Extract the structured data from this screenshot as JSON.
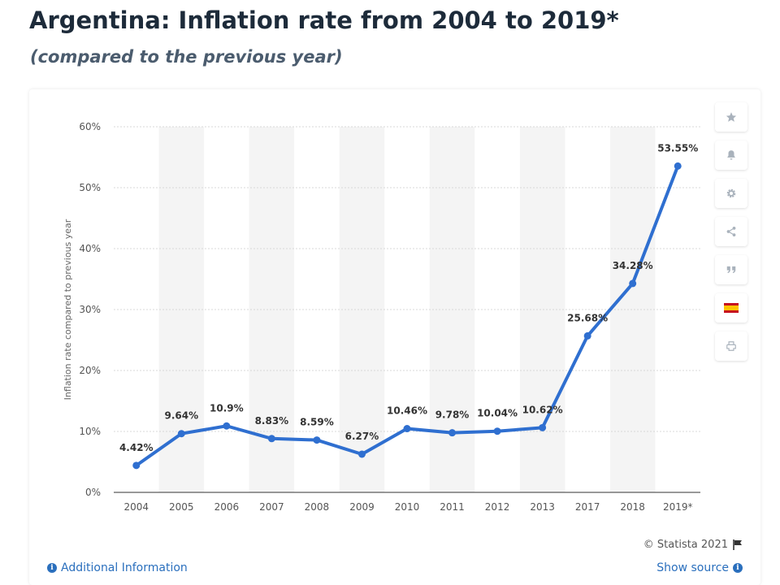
{
  "header": {
    "title": "Argentina: Inflation rate from 2004 to 2019*",
    "subtitle": "(compared to the previous year)"
  },
  "toolbar": {
    "icons": [
      "star-icon",
      "bell-icon",
      "gear-icon",
      "share-icon",
      "quote-icon",
      "spain-flag-icon",
      "print-icon"
    ]
  },
  "footer": {
    "credits": "© Statista 2021",
    "additional_info": "Additional Information",
    "show_source": "Show source"
  },
  "colors": {
    "line": "#2f6fd0",
    "link": "#2a6fbd",
    "band": "#f4f4f4",
    "grid": "#d8d8d8"
  },
  "chart_data": {
    "type": "line",
    "title": "",
    "xlabel": "",
    "ylabel": "Inflation rate compared to previous year",
    "categories": [
      "2004",
      "2005",
      "2006",
      "2007",
      "2008",
      "2009",
      "2010",
      "2011",
      "2012",
      "2013",
      "2017",
      "2018",
      "2019*"
    ],
    "series": [
      {
        "values": [
          4.42,
          9.64,
          10.9,
          8.83,
          8.59,
          6.27,
          10.46,
          9.78,
          10.04,
          10.62,
          25.68,
          34.28,
          53.55
        ],
        "labels": [
          "4.42%",
          "9.64%",
          "10.9%",
          "8.83%",
          "8.59%",
          "6.27%",
          "10.46%",
          "9.78%",
          "10.04%",
          "10.62%",
          "25.68%",
          "34.28%",
          "53.55%"
        ]
      }
    ],
    "ylim": [
      0,
      60
    ],
    "yticks": [
      0,
      10,
      20,
      30,
      40,
      50,
      60
    ],
    "ytick_labels": [
      "0%",
      "10%",
      "20%",
      "30%",
      "40%",
      "50%",
      "60%"
    ],
    "grid": true,
    "legend": "none"
  }
}
